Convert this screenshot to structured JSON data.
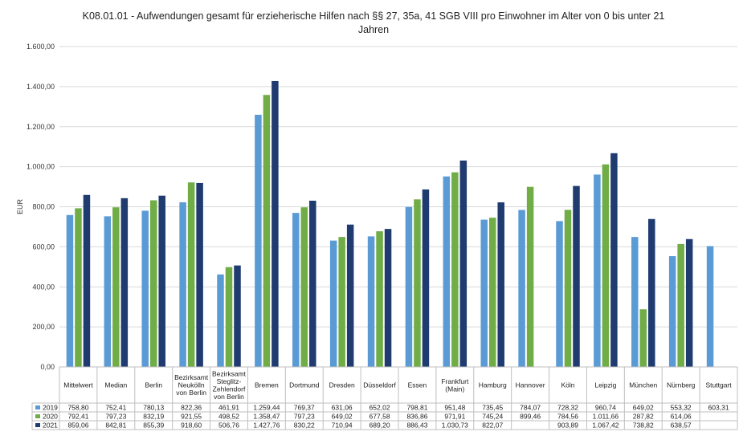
{
  "chart_data": {
    "type": "bar",
    "title": "K08.01.01 - Aufwendungen gesamt für erzieherische Hilfen nach §§ 27, 35a, 41 SGB VIII pro Einwohner im Alter von 0 bis unter 21 Jahren",
    "title_lines": [
      "K08.01.01 - Aufwendungen gesamt für erzieherische Hilfen nach §§ 27, 35a, 41 SGB VIII pro Einwohner im Alter von 0 bis unter 21",
      "Jahren"
    ],
    "ylabel": "EUR",
    "xlabel": "",
    "ylim": [
      0,
      1600
    ],
    "yticks": [
      0,
      200,
      400,
      600,
      800,
      1000,
      1200,
      1400,
      1600
    ],
    "ytick_labels": [
      "0,00",
      "200,00",
      "400,00",
      "600,00",
      "800,00",
      "1.000,00",
      "1.200,00",
      "1.400,00",
      "1.600,00"
    ],
    "grid": true,
    "legend_placement": "data-table-left",
    "categories": [
      [
        "Mittelwert"
      ],
      [
        "Median"
      ],
      [
        "Berlin"
      ],
      [
        "Bezirksamt",
        "Neukölln",
        "von Berlin"
      ],
      [
        "Bezirksamt",
        "Steglitz-",
        "Zehlendorf",
        "von Berlin"
      ],
      [
        "Bremen"
      ],
      [
        "Dortmund"
      ],
      [
        "Dresden"
      ],
      [
        "Düsseldorf"
      ],
      [
        "Essen"
      ],
      [
        "Frankfurt",
        "(Main)"
      ],
      [
        "Hamburg"
      ],
      [
        "Hannover"
      ],
      [
        "Köln"
      ],
      [
        "Leipzig"
      ],
      [
        "München"
      ],
      [
        "Nürnberg"
      ],
      [
        "Stuttgart"
      ]
    ],
    "series": [
      {
        "name": "2019",
        "color": "#5b9bd5",
        "values": [
          758.8,
          752.41,
          780.13,
          822.36,
          461.91,
          1259.44,
          769.37,
          631.06,
          652.02,
          798.81,
          951.48,
          735.45,
          784.07,
          728.32,
          960.74,
          649.02,
          553.32,
          603.31
        ],
        "labels": [
          "758,80",
          "752,41",
          "780,13",
          "822,36",
          "461,91",
          "1.259,44",
          "769,37",
          "631,06",
          "652,02",
          "798,81",
          "951,48",
          "735,45",
          "784,07",
          "728,32",
          "960,74",
          "649,02",
          "553,32",
          "603,31"
        ]
      },
      {
        "name": "2020",
        "color": "#70ad47",
        "values": [
          792.41,
          797.23,
          832.19,
          921.55,
          498.52,
          1358.47,
          797.23,
          649.02,
          677.58,
          836.86,
          971.91,
          745.24,
          899.46,
          784.56,
          1011.66,
          287.82,
          614.06,
          null
        ],
        "labels": [
          "792,41",
          "797,23",
          "832,19",
          "921,55",
          "498,52",
          "1.358,47",
          "797,23",
          "649,02",
          "677,58",
          "836,86",
          "971,91",
          "745,24",
          "899,46",
          "784,56",
          "1.011,66",
          "287,82",
          "614,06",
          ""
        ]
      },
      {
        "name": "2021",
        "color": "#1f3b70",
        "values": [
          859.06,
          842.81,
          855.39,
          918.6,
          506.76,
          1427.76,
          830.22,
          710.94,
          689.2,
          886.43,
          1030.73,
          822.07,
          null,
          903.89,
          1067.42,
          738.82,
          638.57,
          null
        ],
        "labels": [
          "859,06",
          "842,81",
          "855,39",
          "918,60",
          "506,76",
          "1.427,76",
          "830,22",
          "710,94",
          "689,20",
          "886,43",
          "1.030,73",
          "822,07",
          "",
          "903,89",
          "1.067,42",
          "738,82",
          "638,57",
          ""
        ]
      }
    ]
  }
}
